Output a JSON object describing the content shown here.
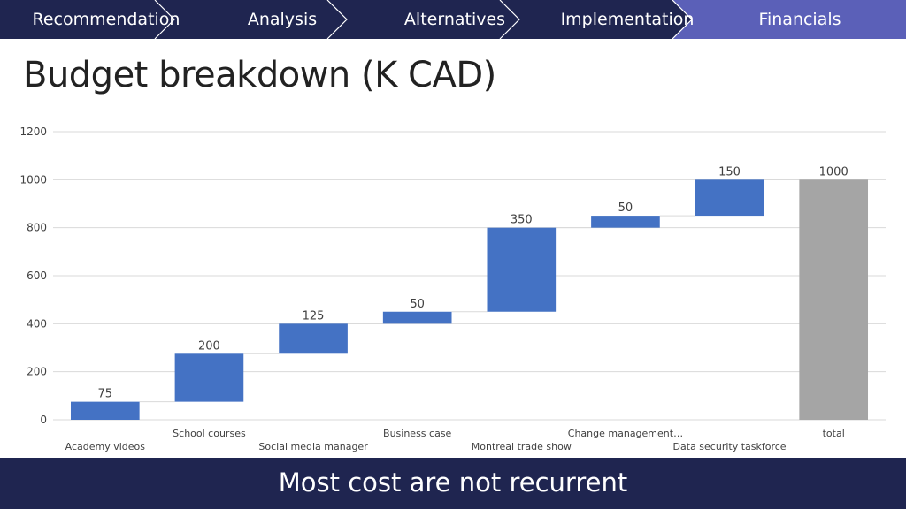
{
  "nav": {
    "tabs": [
      {
        "label": "Recommendation",
        "active": false
      },
      {
        "label": "Analysis",
        "active": false
      },
      {
        "label": "Alternatives",
        "active": false
      },
      {
        "label": "Implementation",
        "active": false
      },
      {
        "label": "Financials",
        "active": true
      }
    ],
    "colors": {
      "bg": "#1f2550",
      "active": "#5b60b8",
      "separator": "#ffffff"
    }
  },
  "title": "Budget breakdown (K CAD)",
  "footer": {
    "text": "Most cost are not recurrent"
  },
  "chart_data": {
    "type": "bar",
    "subtype": "waterfall",
    "title": "Budget breakdown (K CAD)",
    "categories": [
      "Academy videos",
      "School courses",
      "Social media manager",
      "Business case",
      "Montreal trade show",
      "Change management…",
      "Data security taskforce",
      "total"
    ],
    "values": [
      75,
      200,
      125,
      50,
      350,
      50,
      150,
      1000
    ],
    "bases": [
      0,
      75,
      275,
      400,
      450,
      800,
      850,
      0
    ],
    "data_labels": [
      "75",
      "200",
      "125",
      "50",
      "350",
      "50",
      "150",
      "1000"
    ],
    "total_index": 7,
    "ylim": [
      0,
      1200
    ],
    "yticks": [
      0,
      200,
      400,
      600,
      800,
      1000,
      1200
    ],
    "ytick_labels": [
      "0",
      "200",
      "400",
      "600",
      "800",
      "1000",
      "1200"
    ],
    "grid": true,
    "xlabel": "",
    "ylabel": "",
    "colors": {
      "increase": "#4472c4",
      "total": "#a5a5a5",
      "grid": "#d9d9d9",
      "connector": "#d9d9d9",
      "text": "#404040"
    }
  }
}
